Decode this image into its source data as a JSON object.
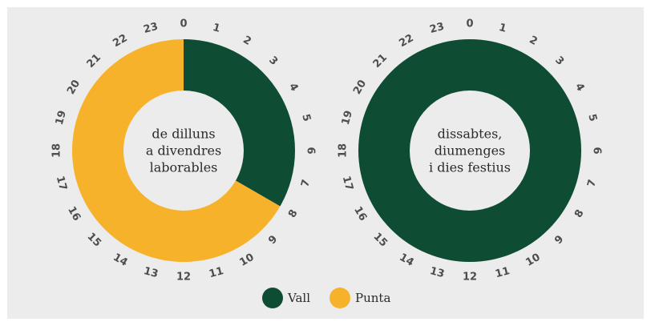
{
  "chart_data": [
    {
      "type": "pie",
      "center_text": [
        "de dilluns",
        "a divendres",
        "laborables"
      ],
      "hours": [
        "0",
        "1",
        "2",
        "3",
        "4",
        "5",
        "6",
        "7",
        "8",
        "9",
        "10",
        "11",
        "12",
        "13",
        "14",
        "15",
        "16",
        "17",
        "18",
        "19",
        "20",
        "21",
        "22",
        "23"
      ],
      "segments": [
        {
          "series": "Vall",
          "start_hour": 0,
          "end_hour": 8
        },
        {
          "series": "Punta",
          "start_hour": 8,
          "end_hour": 24
        }
      ]
    },
    {
      "type": "pie",
      "center_text": [
        "dissabtes,",
        "diumenges",
        "i dies festius"
      ],
      "hours": [
        "0",
        "1",
        "2",
        "3",
        "4",
        "5",
        "6",
        "7",
        "8",
        "9",
        "10",
        "11",
        "12",
        "13",
        "14",
        "15",
        "16",
        "17",
        "18",
        "19",
        "20",
        "21",
        "22",
        "23"
      ],
      "segments": [
        {
          "series": "Vall",
          "start_hour": 0,
          "end_hour": 24
        }
      ]
    }
  ],
  "legend": [
    {
      "label": "Vall",
      "color": "#0e4d33"
    },
    {
      "label": "Punta",
      "color": "#f7b22c"
    }
  ],
  "colors": {
    "background": "#ececec",
    "hole": "#ececec"
  }
}
